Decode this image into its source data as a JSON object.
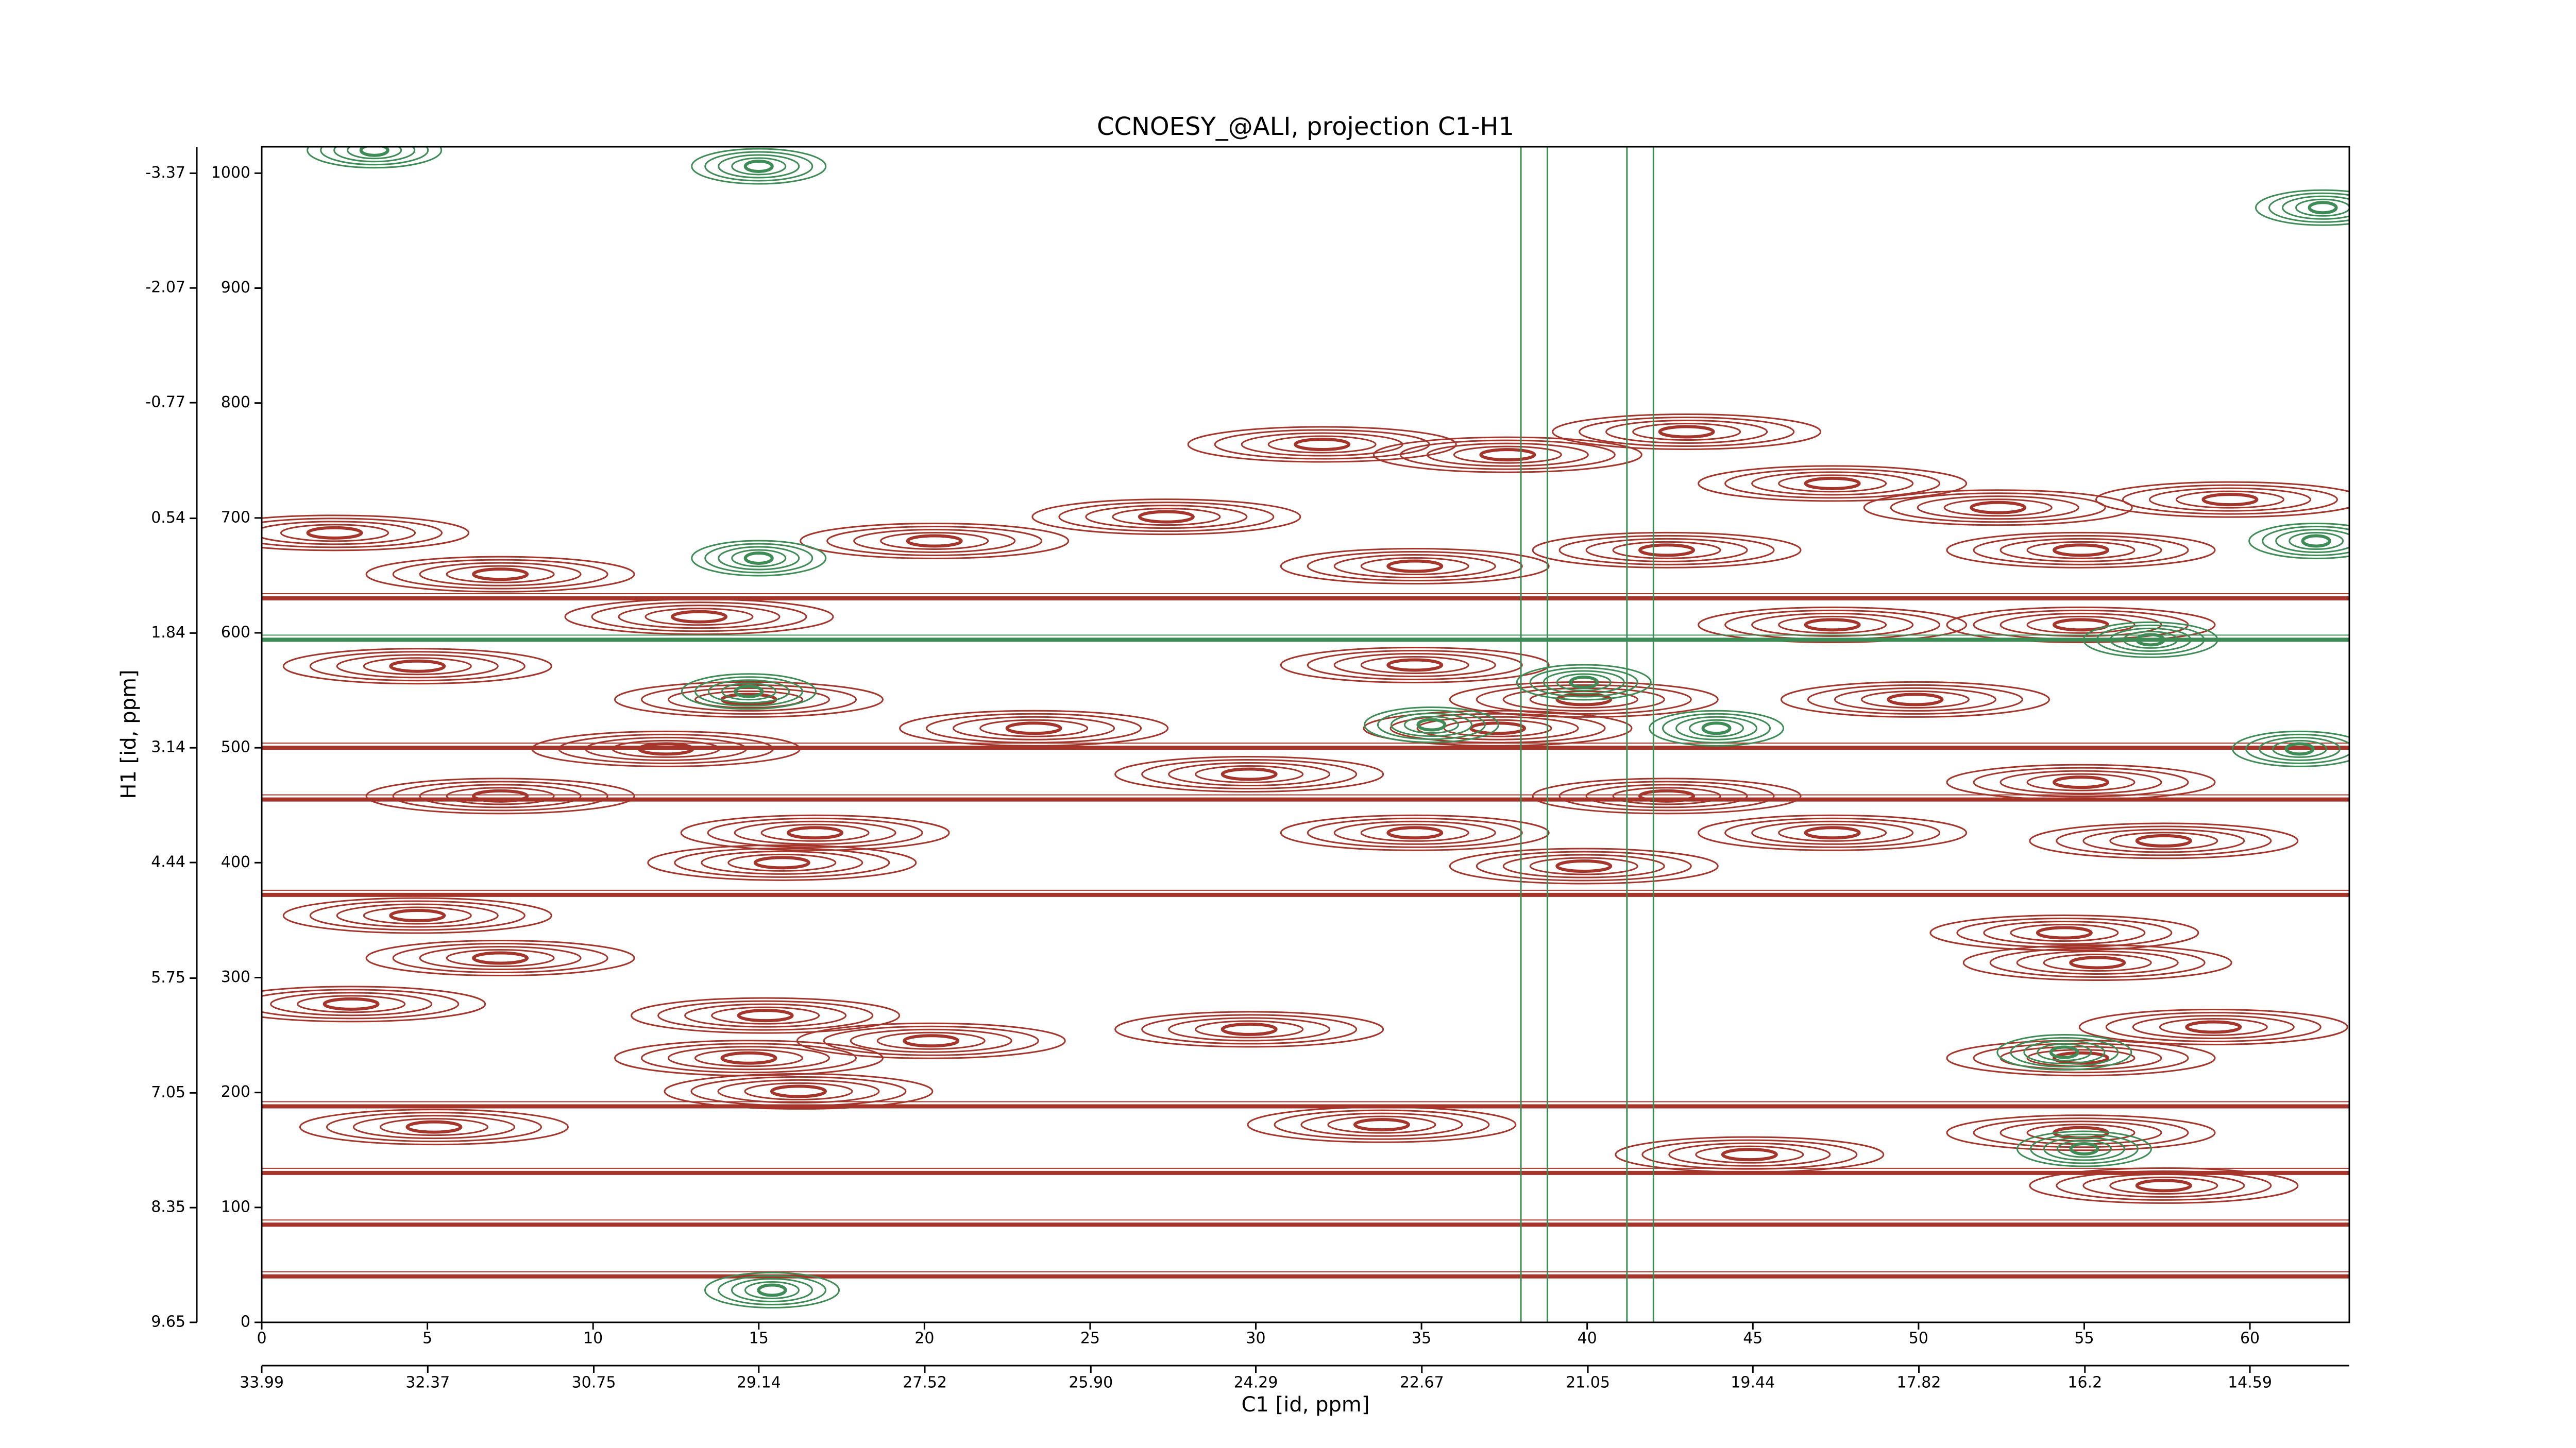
{
  "chart_data": {
    "type": "contour",
    "title": "CCNOESY_@ALI, projection C1-H1",
    "xlabel": "C1 [id, ppm]",
    "ylabel": "H1 [id, ppm]",
    "xlim": [
      0,
      63
    ],
    "xticks": [
      0,
      5,
      10,
      15,
      20,
      25,
      30,
      35,
      40,
      45,
      50,
      55,
      60
    ],
    "ylim": [
      0,
      1023
    ],
    "yticks": [
      0,
      100,
      200,
      300,
      400,
      500,
      600,
      700,
      800,
      900,
      1000
    ],
    "x2lim": [
      33.99,
      13.62
    ],
    "x2ticks": [
      33.99,
      32.37,
      30.75,
      29.14,
      27.52,
      {
        "value": 25.9,
        "label": "25.90"
      },
      24.29,
      22.67,
      21.05,
      19.44,
      17.82,
      16.2,
      14.59
    ],
    "y2lim": [
      9.65,
      -3.67
    ],
    "y2ticks": [
      9.65,
      8.35,
      7.05,
      5.75,
      4.44,
      3.14,
      1.84,
      0.54,
      -0.77,
      -2.07,
      -3.37
    ],
    "series": [
      {
        "color": "#a5352a",
        "x": [
          32,
          43,
          37.6,
          20.3,
          27.3,
          47.4,
          52.4,
          59.4,
          34.8,
          42.4,
          54.9,
          7.2,
          2.2,
          13.2,
          4.7,
          34.8,
          47.4,
          54.9,
          14.7,
          39.9,
          49.9,
          37.3,
          23.3,
          12.2,
          29.8,
          42.4,
          54.9,
          7.2,
          16.7,
          34.8,
          47.4,
          57.4,
          15.7,
          39.9,
          4.7,
          54.4,
          7.2,
          55.4,
          2.7,
          15.2,
          29.8,
          58.9,
          20.2,
          14.7,
          54.9,
          16.2,
          33.8,
          54.9,
          5.2,
          57.4,
          44.9
        ],
        "y": [
          764,
          775,
          755,
          680,
          701,
          730,
          709,
          716,
          658,
          672,
          672,
          651,
          687,
          614,
          571,
          572,
          607,
          607,
          542,
          542,
          542,
          517,
          517,
          499,
          477,
          458,
          470,
          458,
          426,
          426,
          426,
          419,
          400,
          397,
          354,
          339,
          317,
          313,
          277,
          267,
          255,
          257,
          245,
          230,
          230,
          201,
          172,
          165,
          170,
          119,
          146
        ],
        "ridge_y": [
          40,
          85,
          130,
          188,
          372,
          455,
          500,
          630
        ]
      },
      {
        "color": "#3d8c55",
        "x": [
          15,
          57,
          39.9,
          35.3,
          43.9,
          14.7,
          55,
          54.4,
          62,
          62.2,
          3.4,
          15,
          15.4,
          61.5
        ],
        "y": [
          665,
          594,
          557,
          520,
          517,
          549,
          151,
          235,
          680,
          970,
          1020,
          1006,
          28,
          499
        ],
        "ridge_y": [
          594
        ],
        "ridge_x": [
          38,
          38.8,
          41.2,
          42
        ]
      }
    ]
  }
}
